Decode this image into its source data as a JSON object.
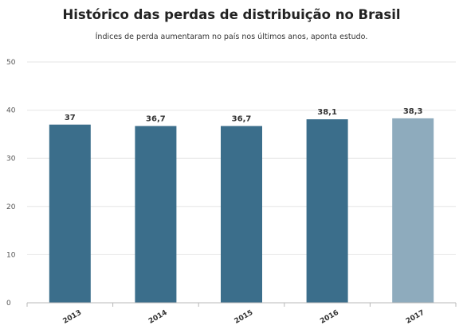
{
  "chart_data": {
    "type": "bar",
    "title": "Histórico das perdas de distribuição no Brasil",
    "subtitle": "Índices de perda aumentaram no país nos últimos anos, aponta estudo.",
    "categories": [
      "2013",
      "2014",
      "2015",
      "2016",
      "2017"
    ],
    "values": [
      37,
      36.7,
      36.7,
      38.1,
      38.3
    ],
    "value_labels": [
      "37",
      "36,7",
      "36,7",
      "38,1",
      "38,3"
    ],
    "ylim": [
      0,
      50
    ],
    "yticks": [
      0,
      10,
      20,
      30,
      40,
      50
    ],
    "grid": true,
    "colors": [
      "#3b6e8b",
      "#3b6e8b",
      "#3b6e8b",
      "#3b6e8b",
      "#8eabbd"
    ],
    "xlabel": "",
    "ylabel": ""
  }
}
